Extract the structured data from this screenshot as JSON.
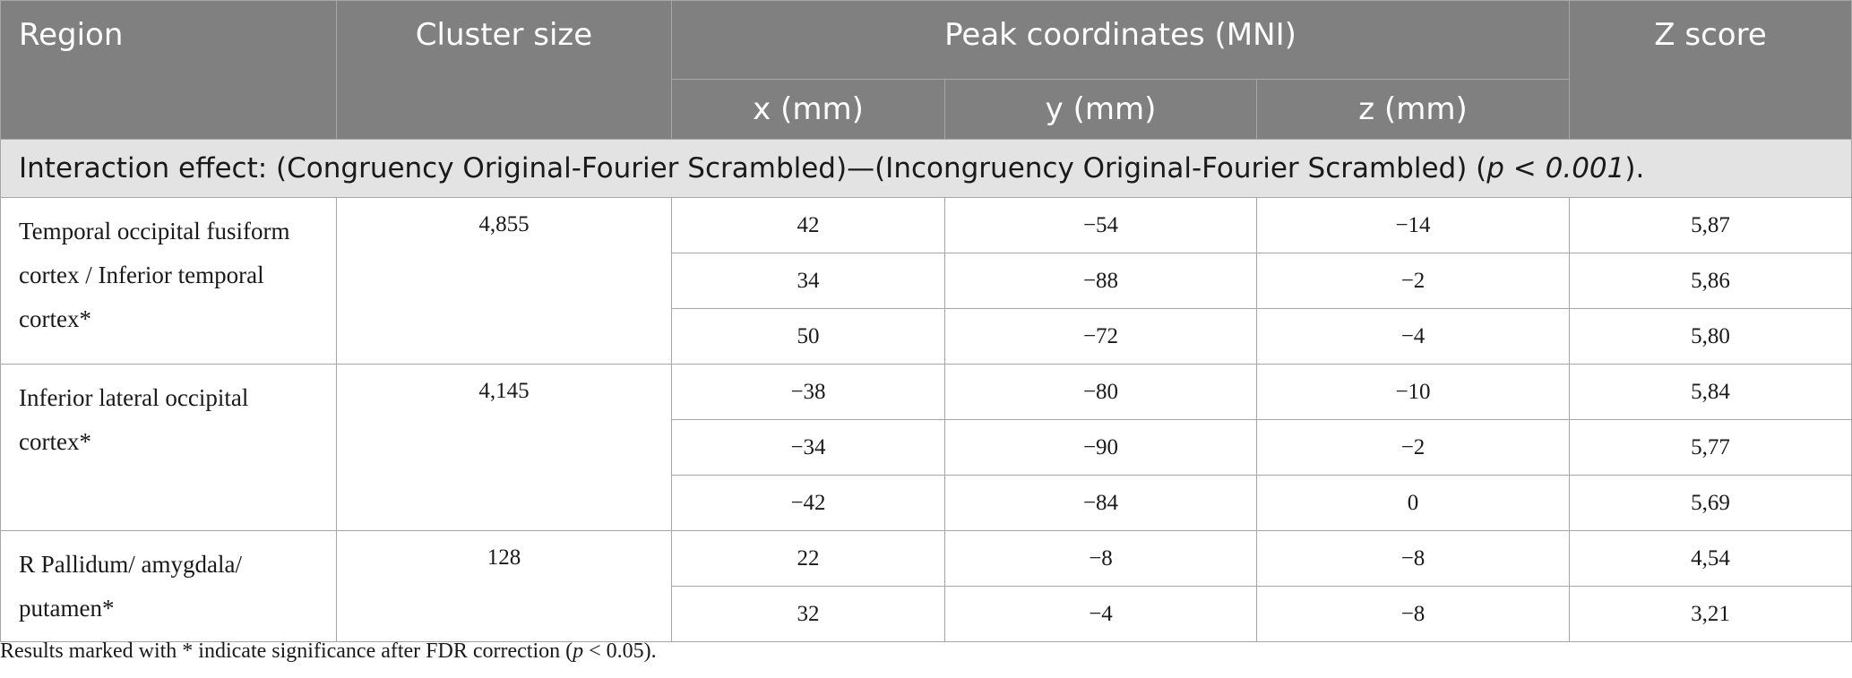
{
  "headers": {
    "region": "Region",
    "cluster_size": "Cluster size",
    "peak_coordinates": "Peak coordinates (MNI)",
    "z_score": "Z score",
    "x": "x (mm)",
    "y": "y (mm)",
    "z": "z (mm)"
  },
  "section": {
    "text_before": "Interaction effect: (Congruency Original-Fourier Scrambled)—(Incongruency Original-Fourier Scrambled) (",
    "p_symbol": "p",
    "p_rest": " < 0.001",
    "text_after": ")."
  },
  "groups": [
    {
      "region": "Temporal occipital fusiform cortex / Inferior temporal cortex*",
      "cluster_size": "4,855",
      "rows": [
        {
          "x": "42",
          "y": "−54",
          "z": "−14",
          "z_score": "5,87"
        },
        {
          "x": "34",
          "y": "−88",
          "z": "−2",
          "z_score": "5,86"
        },
        {
          "x": "50",
          "y": "−72",
          "z": "−4",
          "z_score": "5,80"
        }
      ]
    },
    {
      "region": "Inferior lateral occipital cortex*",
      "cluster_size": "4,145",
      "rows": [
        {
          "x": "−38",
          "y": "−80",
          "z": "−10",
          "z_score": "5,84"
        },
        {
          "x": "−34",
          "y": "−90",
          "z": "−2",
          "z_score": "5,77"
        },
        {
          "x": "−42",
          "y": "−84",
          "z": "0",
          "z_score": "5,69"
        }
      ]
    },
    {
      "region": "R Pallidum/ amygdala/ putamen*",
      "cluster_size": "128",
      "rows": [
        {
          "x": "22",
          "y": "−8",
          "z": "−8",
          "z_score": "4,54"
        },
        {
          "x": "32",
          "y": "−4",
          "z": "−8",
          "z_score": "3,21"
        }
      ]
    }
  ],
  "footnote": {
    "text_before": "Results marked with * indicate significance after FDR correction (",
    "p_symbol": "p",
    "p_rest": " < 0.05)."
  }
}
